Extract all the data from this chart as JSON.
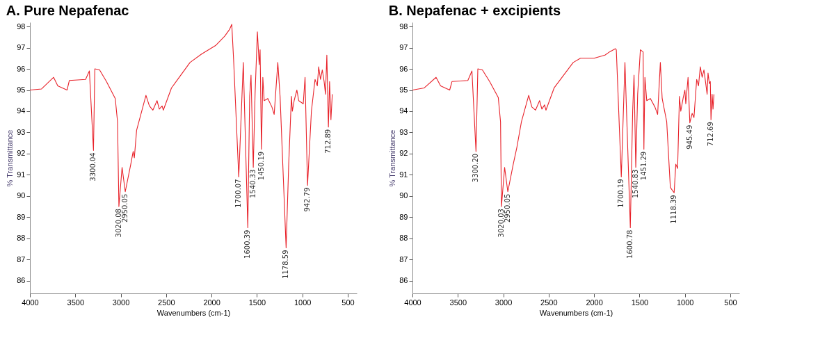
{
  "chart_data": [
    {
      "type": "line",
      "title": "A. Pure Nepafenac",
      "xlabel": "Wavenumbers (cm-1)",
      "ylabel": "% Transmittance",
      "x": [
        4000,
        3872,
        3739,
        3693,
        3591,
        3566,
        3387,
        3345,
        3300.04,
        3285,
        3233,
        3157,
        3060,
        3035,
        3020.08,
        2985,
        2950.05,
        2889,
        2863,
        2850,
        2825,
        2722,
        2684,
        2646,
        2600,
        2575,
        2544,
        2531,
        2441,
        2237,
        2110,
        1956,
        1854,
        1803,
        1777,
        1757,
        1700.07,
        1650,
        1600.39,
        1580,
        1565,
        1540.33,
        1520,
        1495,
        1475,
        1465,
        1450.19,
        1435,
        1420,
        1380,
        1335,
        1310,
        1270,
        1245,
        1178.59,
        1150,
        1120,
        1110,
        1090,
        1060,
        1040,
        990,
        970,
        942.79,
        900,
        860,
        835,
        820,
        800,
        780,
        760,
        745,
        730,
        712.89,
        700,
        685,
        670
      ],
      "series": [
        {
          "color": "#e8222a",
          "values": [
            95.0,
            95.05,
            95.6,
            95.2,
            95.0,
            95.45,
            95.5,
            95.9,
            92.15,
            96.0,
            95.95,
            95.4,
            94.6,
            93.5,
            89.5,
            91.35,
            90.2,
            91.5,
            92.1,
            91.8,
            93.1,
            94.75,
            94.25,
            94.05,
            94.5,
            94.1,
            94.25,
            94.05,
            95.1,
            96.3,
            96.7,
            97.1,
            97.55,
            97.85,
            98.1,
            96.45,
            90.9,
            96.3,
            88.5,
            94.7,
            95.7,
            91.35,
            94.85,
            97.75,
            96.2,
            96.9,
            92.2,
            95.6,
            94.5,
            94.6,
            94.2,
            93.85,
            96.3,
            94.7,
            87.55,
            91.5,
            94.7,
            94.0,
            94.5,
            95.0,
            94.5,
            94.35,
            95.6,
            90.5,
            94.0,
            95.5,
            95.2,
            96.1,
            95.5,
            95.95,
            95.4,
            94.8,
            96.65,
            93.25,
            95.4,
            93.6,
            94.8
          ]
        }
      ],
      "xlim": [
        4000,
        400
      ],
      "ylim": [
        85.4,
        98.2
      ],
      "xticks": [
        4000,
        3500,
        3000,
        2500,
        2000,
        1500,
        1000,
        500
      ],
      "yticks": [
        86,
        87,
        88,
        89,
        90,
        91,
        92,
        93,
        94,
        95,
        96,
        97,
        98
      ],
      "grid": false,
      "annotations": [
        {
          "text": "3300.04",
          "x": 3300.04,
          "y": 92.15
        },
        {
          "text": "3020.08",
          "x": 3020.08,
          "y": 89.5
        },
        {
          "text": "2950.05",
          "x": 2950.05,
          "y": 90.2
        },
        {
          "text": "1700.07",
          "x": 1700.07,
          "y": 90.9
        },
        {
          "text": "1600.39",
          "x": 1600.39,
          "y": 88.5
        },
        {
          "text": "1540.33",
          "x": 1540.33,
          "y": 91.35
        },
        {
          "text": "1450.19",
          "x": 1450.19,
          "y": 92.2
        },
        {
          "text": "1178.59",
          "x": 1178.59,
          "y": 87.55
        },
        {
          "text": "942.79",
          "x": 942.79,
          "y": 90.5
        },
        {
          "text": "712.89",
          "x": 712.89,
          "y": 93.25
        }
      ]
    },
    {
      "type": "line",
      "title": "B. Nepafenac + excipients",
      "xlabel": "Wavenumbers (cm-1)",
      "ylabel": "% Transmittance",
      "x": [
        4000,
        3870,
        3740,
        3690,
        3590,
        3565,
        3390,
        3345,
        3300.2,
        3280,
        3230,
        3150,
        3055,
        3030,
        3020.03,
        2985,
        2950.05,
        2890,
        2850,
        2800,
        2720,
        2685,
        2645,
        2600,
        2575,
        2545,
        2530,
        2440,
        2230,
        2150,
        2000,
        1880,
        1830,
        1765,
        1755,
        1700.19,
        1660,
        1600.78,
        1575,
        1560,
        1540.83,
        1520,
        1490,
        1460,
        1451.29,
        1440,
        1420,
        1380,
        1330,
        1300,
        1270,
        1250,
        1200,
        1160,
        1118.39,
        1100,
        1080,
        1060,
        1045,
        1020,
        1000,
        990,
        965,
        945.49,
        920,
        900,
        870,
        850,
        830,
        810,
        790,
        770,
        755,
        745,
        730,
        720,
        712.69,
        700,
        690,
        680
      ],
      "series": [
        {
          "color": "#e8222a",
          "values": [
            95.0,
            95.1,
            95.6,
            95.2,
            95.0,
            95.4,
            95.45,
            95.9,
            92.1,
            96.0,
            95.95,
            95.4,
            94.65,
            93.5,
            89.5,
            91.35,
            90.2,
            91.5,
            92.3,
            93.5,
            94.75,
            94.2,
            94.05,
            94.5,
            94.1,
            94.3,
            94.05,
            95.1,
            96.3,
            96.5,
            96.5,
            96.65,
            96.8,
            96.95,
            96.9,
            90.9,
            96.3,
            88.5,
            94.0,
            95.7,
            91.35,
            94.8,
            96.9,
            96.8,
            92.2,
            95.6,
            94.5,
            94.6,
            94.2,
            93.85,
            96.3,
            94.6,
            93.5,
            90.4,
            90.15,
            91.5,
            91.3,
            94.7,
            94.0,
            94.6,
            95.0,
            94.35,
            95.6,
            93.45,
            93.9,
            93.7,
            95.5,
            95.2,
            96.1,
            95.6,
            95.95,
            95.3,
            94.8,
            95.8,
            95.3,
            95.4,
            93.6,
            94.8,
            94.1,
            94.8
          ]
        }
      ],
      "xlim": [
        4000,
        400
      ],
      "ylim": [
        85.4,
        98.2
      ],
      "xticks": [
        4000,
        3500,
        3000,
        2500,
        2000,
        1500,
        1000,
        500
      ],
      "yticks": [
        86,
        87,
        88,
        89,
        90,
        91,
        92,
        93,
        94,
        95,
        96,
        97,
        98
      ],
      "grid": false,
      "annotations": [
        {
          "text": "3300.20",
          "x": 3300.2,
          "y": 92.1
        },
        {
          "text": "3020.03",
          "x": 3020.03,
          "y": 89.5
        },
        {
          "text": "2950.05",
          "x": 2950.05,
          "y": 90.2
        },
        {
          "text": "1700.19",
          "x": 1700.19,
          "y": 90.9
        },
        {
          "text": "1600.78",
          "x": 1600.78,
          "y": 88.5
        },
        {
          "text": "1540.83",
          "x": 1540.83,
          "y": 91.35
        },
        {
          "text": "1451.29",
          "x": 1451.29,
          "y": 92.2
        },
        {
          "text": "1118.39",
          "x": 1118.39,
          "y": 90.15
        },
        {
          "text": "945.49",
          "x": 945.49,
          "y": 93.45
        },
        {
          "text": "712.69",
          "x": 712.69,
          "y": 93.6
        }
      ]
    }
  ]
}
